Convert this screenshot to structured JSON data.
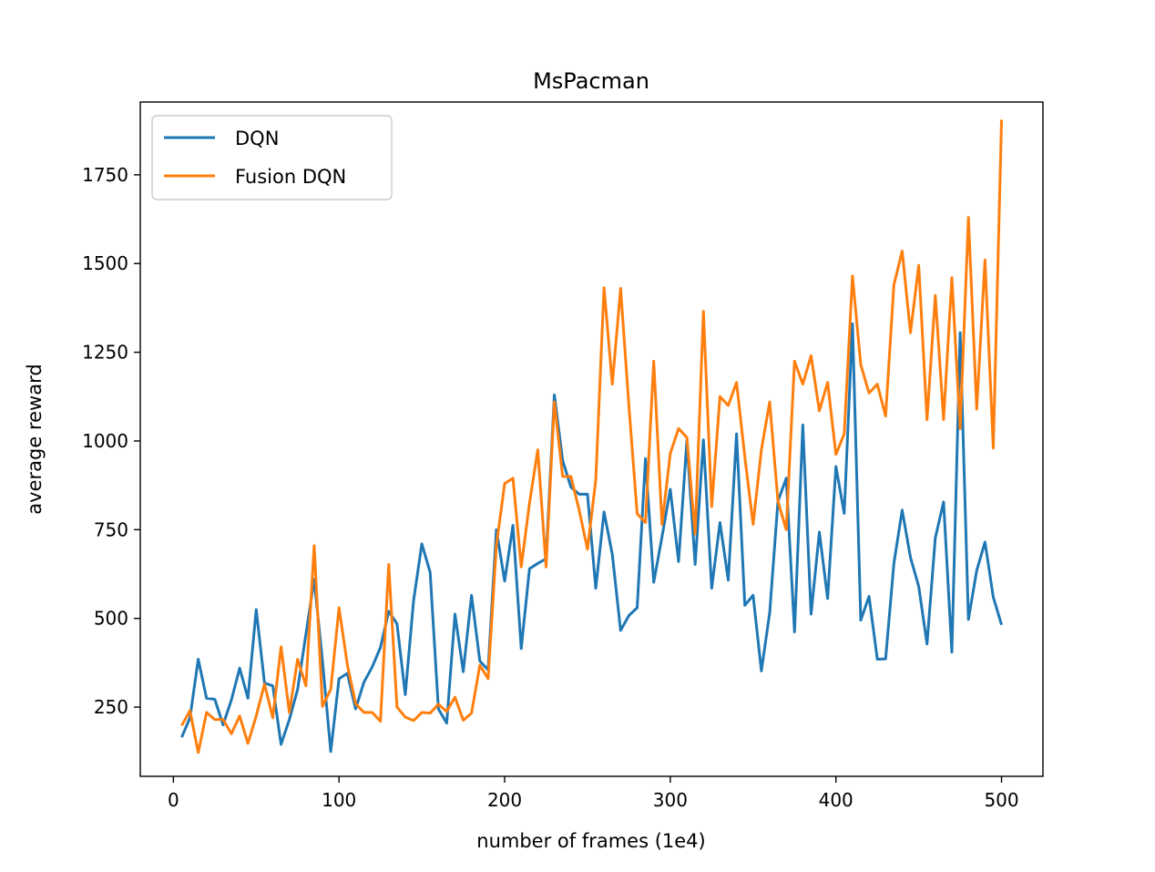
{
  "chart_data": {
    "type": "line",
    "title": "MsPacman",
    "xlabel": "number of frames (1e4)",
    "ylabel": "average reward",
    "xlim": [
      -20,
      525
    ],
    "ylim": [
      55,
      1955
    ],
    "xticks": [
      0,
      100,
      200,
      300,
      400,
      500
    ],
    "yticks": [
      250,
      500,
      750,
      1000,
      1250,
      1500,
      1750
    ],
    "grid": false,
    "legend": "top-left",
    "x": [
      5,
      10,
      15,
      20,
      25,
      30,
      35,
      40,
      45,
      50,
      55,
      60,
      65,
      70,
      75,
      80,
      85,
      90,
      95,
      100,
      105,
      110,
      115,
      120,
      125,
      130,
      135,
      140,
      145,
      150,
      155,
      160,
      165,
      170,
      175,
      180,
      185,
      190,
      195,
      200,
      205,
      210,
      215,
      220,
      225,
      230,
      235,
      240,
      245,
      250,
      255,
      260,
      265,
      270,
      275,
      280,
      285,
      290,
      295,
      300,
      305,
      310,
      315,
      320,
      325,
      330,
      335,
      340,
      345,
      350,
      355,
      360,
      365,
      370,
      375,
      380,
      385,
      390,
      395,
      400,
      405,
      410,
      415,
      420,
      425,
      430,
      435,
      440,
      445,
      450,
      455,
      460,
      465,
      470,
      475,
      480,
      485,
      490,
      495,
      500
    ],
    "series": [
      {
        "name": "DQN",
        "color": "#1f77b4",
        "values": [
          165,
          220,
          385,
          275,
          272,
          200,
          270,
          360,
          275,
          525,
          318,
          310,
          145,
          215,
          300,
          455,
          610,
          380,
          125,
          330,
          345,
          245,
          320,
          363,
          418,
          520,
          485,
          285,
          550,
          710,
          630,
          245,
          205,
          512,
          350,
          565,
          380,
          355,
          750,
          605,
          762,
          415,
          640,
          655,
          668,
          1130,
          945,
          870,
          850,
          850,
          585,
          800,
          680,
          466,
          508,
          530,
          950,
          602,
          730,
          864,
          660,
          1000,
          652,
          1003,
          585,
          770,
          608,
          1020,
          537,
          565,
          352,
          515,
          830,
          895,
          462,
          1045,
          512,
          743,
          556,
          928,
          796,
          1330,
          495,
          562,
          385,
          386,
          655,
          805,
          672,
          590,
          428,
          727,
          828,
          405,
          1305,
          497,
          635,
          715,
          560,
          482
        ]
      },
      {
        "name": "Fusion DQN",
        "color": "#ff7f0e",
        "values": [
          198,
          240,
          122,
          235,
          215,
          215,
          175,
          225,
          148,
          225,
          315,
          220,
          420,
          235,
          385,
          310,
          705,
          252,
          300,
          530,
          370,
          260,
          235,
          235,
          210,
          652,
          250,
          222,
          212,
          235,
          233,
          258,
          238,
          278,
          213,
          233,
          368,
          330,
          705,
          880,
          895,
          645,
          825,
          975,
          645,
          1110,
          900,
          900,
          805,
          695,
          890,
          1432,
          1160,
          1430,
          1100,
          795,
          770,
          1225,
          765,
          965,
          1035,
          1010,
          738,
          1365,
          815,
          1125,
          1100,
          1165,
          955,
          765,
          975,
          1110,
          830,
          750,
          1225,
          1160,
          1240,
          1085,
          1165,
          962,
          1020,
          1465,
          1215,
          1135,
          1160,
          1070,
          1440,
          1535,
          1305,
          1495,
          1060,
          1410,
          1060,
          1460,
          1035,
          1630,
          1090,
          1510,
          980,
          1905
        ]
      }
    ]
  }
}
